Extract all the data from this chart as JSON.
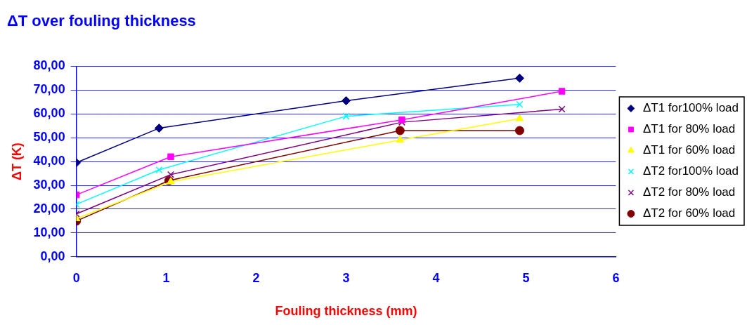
{
  "chart_data": {
    "type": "line",
    "title": "ΔT over fouling thickness",
    "xlabel": "Fouling thickness (mm)",
    "ylabel": "ΔT (K)",
    "xlim": [
      0,
      6
    ],
    "xticks": [
      0,
      1,
      2,
      3,
      4,
      5,
      6
    ],
    "ylim": [
      0,
      80
    ],
    "yticks": [
      {
        "value": 0,
        "label": "0,00"
      },
      {
        "value": 10,
        "label": "10,00"
      },
      {
        "value": 20,
        "label": "20,00"
      },
      {
        "value": 30,
        "label": "30,00"
      },
      {
        "value": 40,
        "label": "40,00"
      },
      {
        "value": 50,
        "label": "50,00"
      },
      {
        "value": 60,
        "label": "60,00"
      },
      {
        "value": 70,
        "label": "70,00"
      },
      {
        "value": 80,
        "label": "80,00"
      }
    ],
    "grid": "y",
    "legend": "right",
    "line_style": "solid",
    "series": [
      {
        "name": "ΔT1 for100% load",
        "color": "#000080",
        "marker": "diamond",
        "x": [
          0,
          0.92,
          3,
          4.93
        ],
        "values": [
          39.5,
          54,
          65.5,
          75
        ]
      },
      {
        "name": "ΔT1 for 80% load",
        "color": "#ff00ff",
        "marker": "square",
        "x": [
          0,
          1.05,
          3.62,
          5.4
        ],
        "values": [
          26,
          42,
          57.5,
          69.5
        ]
      },
      {
        "name": "ΔT1 for 60% load",
        "color": "#ffff00",
        "marker": "triangle",
        "x": [
          0,
          1.05,
          3.6,
          4.93
        ],
        "values": [
          16,
          31.5,
          49,
          58
        ]
      },
      {
        "name": "ΔT2 for100% load",
        "color": "#00ffff",
        "marker": "cross",
        "x": [
          0,
          0.92,
          3,
          4.93
        ],
        "values": [
          22,
          36.5,
          59,
          64
        ]
      },
      {
        "name": "ΔT2 for 80% load",
        "color": "#800080",
        "marker": "cross",
        "x": [
          0,
          1.05,
          3.62,
          5.4
        ],
        "values": [
          18,
          34.5,
          56.5,
          62
        ]
      },
      {
        "name": "ΔT2 for 60% load",
        "color": "#800000",
        "marker": "circle",
        "x": [
          0,
          1.03,
          3.6,
          4.93
        ],
        "values": [
          15,
          32,
          53,
          53
        ]
      }
    ]
  }
}
